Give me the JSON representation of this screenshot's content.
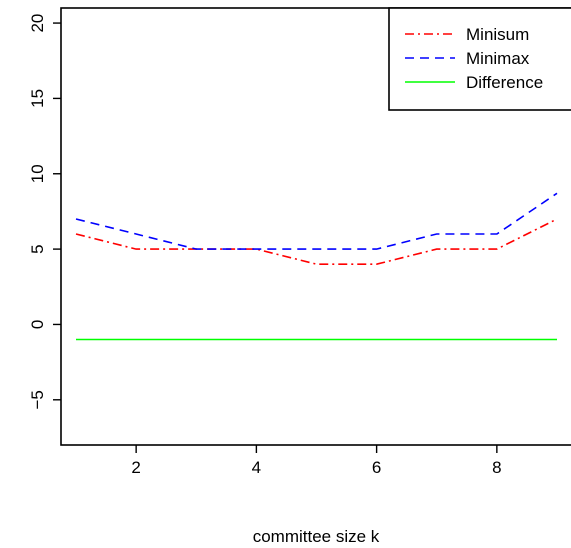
{
  "chart_data": {
    "type": "line",
    "title": "",
    "xlabel": "committee size k",
    "ylabel": "",
    "xlim": [
      0.75,
      9.25
    ],
    "ylim": [
      -8,
      21
    ],
    "x_ticks": [
      2,
      4,
      6,
      8
    ],
    "y_ticks": [
      -5,
      0,
      5,
      10,
      15,
      20
    ],
    "y_tick_labels": [
      "−5",
      "0",
      "5",
      "10",
      "15",
      "20"
    ],
    "grid": false,
    "legend_position": "top-right",
    "x": [
      1,
      2,
      3,
      4,
      5,
      6,
      7,
      8,
      9
    ],
    "series": [
      {
        "name": "Minisum",
        "color": "#ff0000",
        "style": "dashdot",
        "values": [
          6,
          5,
          5,
          5,
          4,
          4,
          5,
          5,
          7
        ]
      },
      {
        "name": "Minimax",
        "color": "#0000ff",
        "style": "dashed",
        "values": [
          7,
          6,
          5,
          5,
          5,
          5,
          6,
          6,
          8.7
        ]
      },
      {
        "name": "Difference",
        "color": "#00ff00",
        "style": "solid",
        "values": [
          -1,
          -1,
          -1,
          -1,
          -1,
          -1,
          -1,
          -1,
          -1
        ]
      }
    ]
  }
}
